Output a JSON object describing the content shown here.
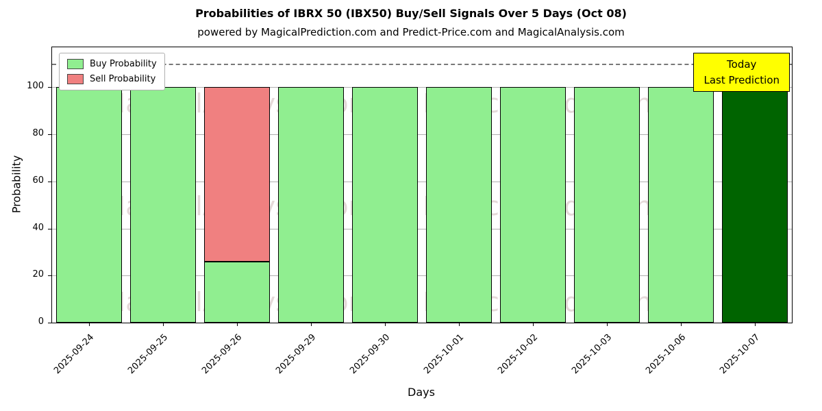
{
  "chart_data": {
    "type": "bar",
    "stacked": true,
    "title": "Probabilities of IBRX 50 (IBX50) Buy/Sell Signals Over 5 Days (Oct 08)",
    "subtitle": "powered by MagicalPrediction.com and Predict-Price.com and MagicalAnalysis.com",
    "xlabel": "Days",
    "ylabel": "Probability",
    "ylim": [
      0,
      117
    ],
    "yticks": [
      0,
      20,
      40,
      60,
      80,
      100
    ],
    "grid": "horizontal",
    "legend_position": "upper-left",
    "categories": [
      "2025-09-24",
      "2025-09-25",
      "2025-09-26",
      "2025-09-29",
      "2025-09-30",
      "2025-10-01",
      "2025-10-02",
      "2025-10-03",
      "2025-10-06",
      "2025-10-07"
    ],
    "series": [
      {
        "name": "Buy Probability",
        "color": "#90EE90",
        "values": [
          100,
          100,
          26,
          100,
          100,
          100,
          100,
          100,
          100,
          100
        ]
      },
      {
        "name": "Sell Probability",
        "color": "#F08080",
        "values": [
          0,
          0,
          74,
          0,
          0,
          0,
          0,
          0,
          0,
          0
        ]
      }
    ],
    "special_bars": [
      {
        "index": 9,
        "color": "#006400"
      }
    ],
    "reference_line": {
      "y": 110,
      "style": "dashed",
      "color": "#777777"
    },
    "annotation_box": {
      "lines": [
        "Today",
        "Last Prediction"
      ],
      "bg_color": "#FFFF00",
      "border_color": "#000000",
      "position": "top-right"
    },
    "watermarks": {
      "texts": [
        "MagicalAnalysis.com",
        "MagicalPrediction.com"
      ],
      "color": "rgba(170,130,130,0.30)"
    }
  },
  "legend": {
    "items": [
      {
        "label": "Buy Probability",
        "color": "#90EE90"
      },
      {
        "label": "Sell Probability",
        "color": "#F08080"
      }
    ]
  }
}
